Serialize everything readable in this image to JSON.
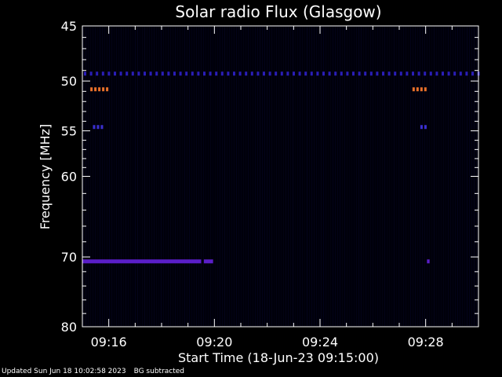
{
  "chart_data": {
    "type": "heatmap",
    "title": "Solar radio Flux (Glasgow)",
    "xlabel": "Start Time (18-Jun-23 09:15:00)",
    "ylabel": "Frequency [MHz]",
    "x_ticks": [
      "09:16",
      "09:20",
      "09:24",
      "09:28"
    ],
    "x_tick_minutes": [
      16,
      20,
      24,
      28
    ],
    "xlim_minutes": [
      15,
      30
    ],
    "y_ticks": [
      45,
      50,
      55,
      60,
      70,
      80
    ],
    "ylim_mhz": [
      45,
      80
    ],
    "y_scale": "log",
    "background_color": "#000000",
    "features": [
      {
        "name": "50 MHz band",
        "freq_mhz": 49.3,
        "start_min": 15.0,
        "end_min": 30.0,
        "kind": "dotted",
        "color": "#2a1eb8"
      },
      {
        "name": "51 MHz spots",
        "freq_mhz": 50.8,
        "start_min": 15.3,
        "end_min": 15.9,
        "kind": "spots",
        "color": "#e8702a"
      },
      {
        "name": "51 MHz spots late",
        "freq_mhz": 50.8,
        "start_min": 27.5,
        "end_min": 28.0,
        "kind": "spots",
        "color": "#e8702a"
      },
      {
        "name": "55 MHz spots",
        "freq_mhz": 54.6,
        "start_min": 15.4,
        "end_min": 15.7,
        "kind": "spots",
        "color": "#3a2fd0"
      },
      {
        "name": "55 MHz spots late",
        "freq_mhz": 54.6,
        "start_min": 27.8,
        "end_min": 28.0,
        "kind": "spots",
        "color": "#3a2fd0"
      },
      {
        "name": "70.5 MHz band",
        "freq_mhz": 70.6,
        "start_min": 15.0,
        "end_min": 19.5,
        "kind": "solid",
        "color": "#5a1ec8"
      },
      {
        "name": "70.5 MHz band tail",
        "freq_mhz": 70.6,
        "start_min": 19.6,
        "end_min": 19.95,
        "kind": "solid",
        "color": "#5a1ec8"
      },
      {
        "name": "70.5 MHz spot",
        "freq_mhz": 70.6,
        "start_min": 28.05,
        "end_min": 28.15,
        "kind": "solid",
        "color": "#5a1ec8"
      }
    ]
  },
  "footer": {
    "updated": "Updated Sun Jun 18 10:02:58 2023",
    "note": "BG subtracted"
  }
}
